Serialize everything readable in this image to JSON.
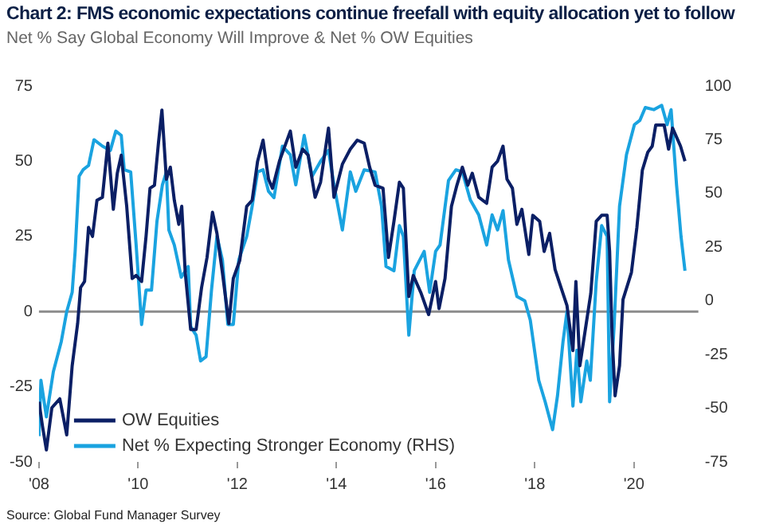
{
  "chart_data": {
    "type": "line",
    "title": "Chart 2: FMS economic expectations continue freefall with equity allocation yet to follow",
    "subtitle": "Net % Say Global Economy Will Improve & Net % OW Equities",
    "annotations": [
      "Source: Global Fund Manager Survey"
    ],
    "xlim": [
      2008,
      2021.3
    ],
    "xticks": [
      {
        "value": 2008,
        "label": "'08"
      },
      {
        "value": 2010,
        "label": "'10"
      },
      {
        "value": 2012,
        "label": "'12"
      },
      {
        "value": 2014,
        "label": "'14"
      },
      {
        "value": 2016,
        "label": "'16"
      },
      {
        "value": 2018,
        "label": "'18"
      },
      {
        "value": 2020,
        "label": "'20"
      }
    ],
    "ylim": [
      -50,
      75
    ],
    "yticks": [
      -50,
      -25,
      0,
      25,
      50,
      75
    ],
    "y2lim": [
      -75,
      100
    ],
    "y2ticks": [
      -75,
      -50,
      -25,
      0,
      25,
      50,
      75,
      100
    ],
    "grid": false,
    "legend": "bottom left",
    "marker": "none",
    "line_style": "solid",
    "ref_lines": [
      {
        "axis": "y",
        "value": 0,
        "color": "#8c8c8c"
      }
    ],
    "series": [
      {
        "name": "OW Equities",
        "color": "#0b1f65",
        "x": [
          2008.0,
          2008.07,
          2008.15,
          2008.26,
          2008.42,
          2008.56,
          2008.67,
          2008.78,
          2008.84,
          2008.92,
          2009.0,
          2009.08,
          2009.17,
          2009.28,
          2009.39,
          2009.5,
          2009.58,
          2009.66,
          2009.77,
          2009.88,
          2009.96,
          2010.07,
          2010.16,
          2010.24,
          2010.33,
          2010.41,
          2010.48,
          2010.57,
          2010.65,
          2010.73,
          2010.82,
          2010.88,
          2010.95,
          2011.06,
          2011.17,
          2011.28,
          2011.39,
          2011.5,
          2011.59,
          2011.7,
          2011.83,
          2011.92,
          2012.05,
          2012.19,
          2012.3,
          2012.41,
          2012.52,
          2012.63,
          2012.71,
          2012.85,
          2013.07,
          2013.18,
          2013.32,
          2013.43,
          2013.57,
          2013.68,
          2013.84,
          2013.95,
          2014.12,
          2014.28,
          2014.42,
          2014.56,
          2014.67,
          2014.78,
          2014.94,
          2015.05,
          2015.16,
          2015.27,
          2015.35,
          2015.46,
          2015.55,
          2015.71,
          2015.86,
          2016.0,
          2016.07,
          2016.19,
          2016.32,
          2016.43,
          2016.54,
          2016.65,
          2016.74,
          2016.87,
          2017.03,
          2017.14,
          2017.25,
          2017.36,
          2017.44,
          2017.55,
          2017.64,
          2017.74,
          2017.88,
          2017.96,
          2018.1,
          2018.19,
          2018.3,
          2018.41,
          2018.57,
          2018.65,
          2018.77,
          2018.83,
          2018.91,
          2019.02,
          2019.13,
          2019.24,
          2019.35,
          2019.46,
          2019.51,
          2019.56,
          2019.62,
          2019.71,
          2019.78,
          2019.95,
          2020.06,
          2020.17,
          2020.28,
          2020.37,
          2020.44,
          2020.61,
          2020.7,
          2020.78,
          2020.94,
          2021.03
        ],
        "values": [
          -30,
          -38,
          -46,
          -32,
          -29,
          -41,
          -18,
          -4,
          8,
          10,
          28,
          25,
          37,
          38,
          56,
          34,
          46,
          52,
          35,
          11,
          12,
          10,
          25,
          41,
          42,
          56,
          67,
          44,
          48,
          37,
          29,
          35,
          13,
          -6,
          -6,
          8,
          18,
          33,
          26,
          13,
          -4,
          11,
          17,
          35,
          37,
          50,
          57,
          44,
          41,
          50,
          60,
          48,
          54,
          52,
          38,
          43,
          61,
          38,
          49,
          54,
          57,
          56,
          48,
          42,
          41,
          18,
          30,
          43,
          41,
          5,
          12,
          6,
          -1,
          10,
          1,
          11,
          35,
          42,
          48,
          42,
          46,
          38,
          36,
          48,
          50,
          55,
          44,
          41,
          29,
          34,
          19,
          32,
          30,
          20,
          26,
          14,
          6,
          2,
          -13,
          10,
          -18,
          -6,
          6,
          30,
          32,
          32,
          20,
          -8,
          -28,
          -18,
          4,
          13,
          28,
          47,
          53,
          55,
          62,
          62,
          54,
          61,
          55,
          50
        ]
      },
      {
        "name": "Net % Expecting Stronger Economy (RHS)",
        "color": "#1aa3e0",
        "axis": "y2",
        "x": [
          2008.0,
          2008.04,
          2008.15,
          2008.29,
          2008.45,
          2008.56,
          2008.67,
          2008.73,
          2008.81,
          2008.89,
          2009.0,
          2009.11,
          2009.28,
          2009.44,
          2009.55,
          2009.66,
          2009.72,
          2009.85,
          2009.96,
          2010.07,
          2010.16,
          2010.27,
          2010.38,
          2010.49,
          2010.57,
          2010.62,
          2010.73,
          2010.87,
          2011.01,
          2011.06,
          2011.17,
          2011.26,
          2011.37,
          2011.48,
          2011.59,
          2011.7,
          2011.81,
          2011.92,
          2012.03,
          2012.19,
          2012.3,
          2012.41,
          2012.52,
          2012.63,
          2012.74,
          2012.91,
          2013.07,
          2013.18,
          2013.35,
          2013.51,
          2013.68,
          2013.84,
          2013.95,
          2014.12,
          2014.28,
          2014.39,
          2014.56,
          2014.78,
          2014.91,
          2015.0,
          2015.16,
          2015.27,
          2015.35,
          2015.46,
          2015.57,
          2015.77,
          2015.88,
          2016.0,
          2016.09,
          2016.26,
          2016.41,
          2016.54,
          2016.7,
          2016.87,
          2017.03,
          2017.14,
          2017.25,
          2017.36,
          2017.47,
          2017.64,
          2017.8,
          2017.91,
          2018.08,
          2018.21,
          2018.36,
          2018.46,
          2018.57,
          2018.65,
          2018.77,
          2018.85,
          2018.93,
          2019.05,
          2019.12,
          2019.24,
          2019.35,
          2019.46,
          2019.51,
          2019.6,
          2019.71,
          2019.85,
          2020.01,
          2020.12,
          2020.23,
          2020.4,
          2020.56,
          2020.67,
          2020.75,
          2020.86,
          2020.95,
          2021.03
        ],
        "values": [
          -63,
          -37,
          -54,
          -33,
          -19,
          -5,
          4,
          23,
          58,
          61,
          63,
          75,
          72,
          70,
          79,
          77,
          61,
          60,
          26,
          -11,
          5,
          5,
          37,
          54,
          60,
          33,
          26,
          11,
          16,
          -12,
          -16,
          -28,
          -26,
          5,
          30,
          19,
          -11,
          -11,
          19,
          30,
          44,
          60,
          61,
          51,
          48,
          72,
          68,
          54,
          77,
          58,
          65,
          70,
          54,
          33,
          60,
          51,
          61,
          60,
          44,
          16,
          14,
          35,
          30,
          -16,
          14,
          23,
          4,
          23,
          26,
          56,
          61,
          60,
          47,
          40,
          26,
          40,
          33,
          42,
          19,
          2,
          0,
          -9,
          -37,
          -47,
          -60,
          -44,
          -19,
          -5,
          -49,
          -23,
          -47,
          -28,
          -37,
          9,
          35,
          30,
          -47,
          -12,
          44,
          68,
          82,
          84,
          90,
          89,
          91,
          82,
          89,
          54,
          30,
          14
        ]
      }
    ]
  }
}
